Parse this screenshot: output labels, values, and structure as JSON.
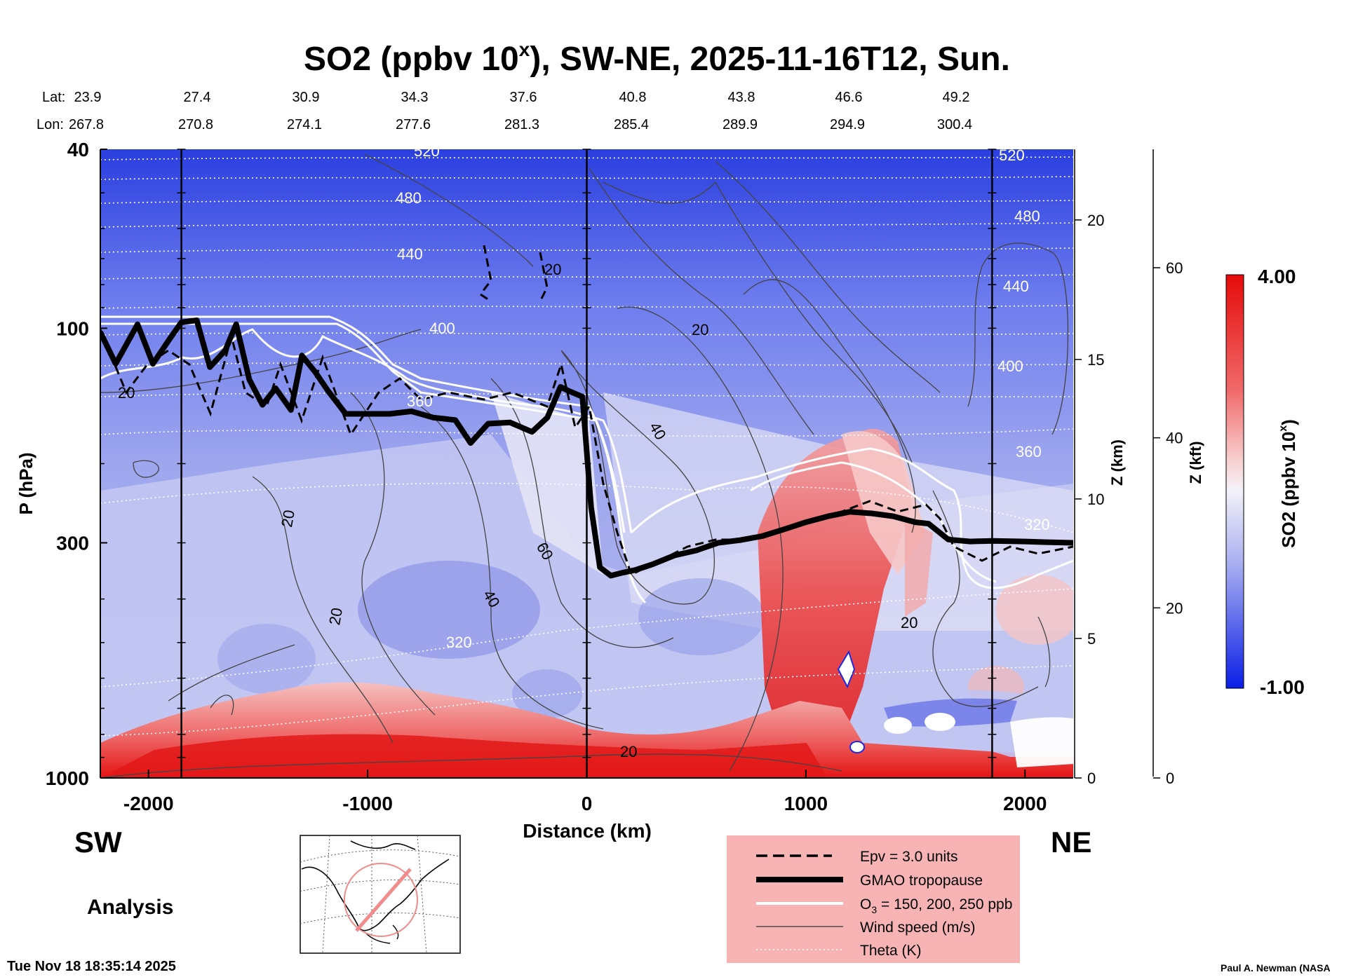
{
  "chart_data": {
    "type": "cross-section",
    "title_pre": "SO2 (ppbv 10",
    "title_sup": "x",
    "title_post": "), SW-NE, 2025-11-16T12, Sun.",
    "lat_label": "Lat:",
    "lon_label": "Lon:",
    "lat": [
      "23.9",
      "27.4",
      "30.9",
      "34.3",
      "37.6",
      "40.8",
      "43.8",
      "46.6",
      "49.2"
    ],
    "lon": [
      "267.8",
      "270.8",
      "274.1",
      "277.6",
      "281.3",
      "285.4",
      "289.9",
      "294.9",
      "300.4"
    ],
    "xlabel": "Distance (km)",
    "xticks": [
      "-2000",
      "-1000",
      "0",
      "1000",
      "2000"
    ],
    "xtick_values": [
      -2000,
      -1000,
      0,
      1000,
      2000
    ],
    "xlim": [
      -2220,
      2220
    ],
    "ylabel": "P (hPa)",
    "yticks": [
      "40",
      "100",
      "300",
      "1000"
    ],
    "ytick_values": [
      40,
      100,
      300,
      1000
    ],
    "ylim": [
      1000,
      40
    ],
    "z_km_label": "Z (km)",
    "z_km_ticks": [
      "0",
      "5",
      "10",
      "15",
      "20"
    ],
    "z_kft_label": "Z (kft)",
    "z_kft_ticks": [
      "0",
      "20",
      "40",
      "60"
    ],
    "colorbar": {
      "label_pre": "SO2 (ppbv 10",
      "label_sup": "x",
      "label_post": ")",
      "max_label": "4.00",
      "min_label": "-1.00",
      "max": 4.0,
      "min": -1.0
    },
    "theta_labels": [
      "520",
      "480",
      "440",
      "400",
      "360",
      "320",
      "520",
      "480",
      "440",
      "400",
      "360",
      "320"
    ],
    "wind_labels": [
      "20",
      "20",
      "20",
      "40",
      "60",
      "40",
      "20",
      "20",
      "20",
      "20",
      "20"
    ],
    "vertical_markers_km": [
      -1850,
      0,
      1850
    ],
    "tropopause_km": [
      -2220,
      -2150,
      -2050,
      -1980,
      -1900,
      -1850,
      -1780,
      -1720,
      -1650,
      -1600,
      -1540,
      -1480,
      -1420,
      -1350,
      -1300,
      -1240,
      -1180,
      -1100,
      -1000,
      -900,
      -800,
      -700,
      -600,
      -530,
      -450,
      -350,
      -250,
      -180,
      -120,
      -80,
      -20,
      20,
      60,
      110,
      160,
      220,
      300,
      400,
      500,
      600,
      700,
      800,
      900,
      1000,
      1100,
      1200,
      1300,
      1400,
      1500,
      1560,
      1650,
      1750,
      1850,
      2000,
      2100,
      2220
    ],
    "tropopause_hpa": [
      102,
      120,
      98,
      120,
      105,
      97,
      96,
      122,
      112,
      98,
      130,
      148,
      136,
      152,
      115,
      125,
      138,
      155,
      155,
      155,
      153,
      158,
      160,
      180,
      163,
      162,
      170,
      158,
      135,
      138,
      142,
      250,
      340,
      355,
      350,
      345,
      335,
      320,
      312,
      300,
      296,
      290,
      280,
      270,
      262,
      256,
      258,
      262,
      270,
      272,
      295,
      298,
      297,
      298,
      299,
      300
    ],
    "tropopause_note": "GMAO tropopause pressure (hPa) along section"
  },
  "labels": {
    "sw": "SW",
    "ne": "NE",
    "analysis": "Analysis",
    "timestamp": "Tue Nov 18 18:35:14 2025",
    "credit": "Paul A. Newman (NASA"
  },
  "legend": {
    "items": [
      "Epv = 3.0 units",
      "GMAO tropopause",
      "O3 = 150, 200, 250 ppb",
      "Wind speed (m/s)",
      "Theta (K)"
    ],
    "o3_pre": "O",
    "o3_sub": "3",
    "o3_post": " = 150, 200, 250 ppb"
  },
  "colors": {
    "low": "#0a1ee6",
    "mid": "#f2f0f6",
    "high": "#e60a0a",
    "legend_bg": "#f8b4b4",
    "map_circle": "#f08c8c"
  }
}
